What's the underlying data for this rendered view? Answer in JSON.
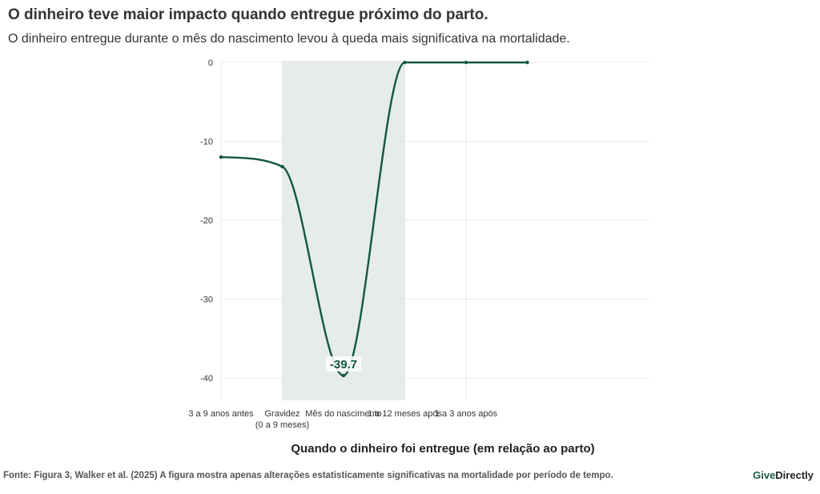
{
  "title": "O dinheiro teve maior impacto quando entregue próximo do parto.",
  "subtitle": "O dinheiro entregue durante o mês do nascimento levou à queda mais significativa na mortalidade.",
  "footer": "Fonte: Figura 3, Walker et al. (2025) A figura mostra apenas alterações estatisticamente significativas na mortalidade por período de tempo.",
  "brand": {
    "part1": "Give",
    "part2": "Directly"
  },
  "colors": {
    "line": "#12573f",
    "highlight": "#e6ece9",
    "grid": "#e8e8e8",
    "text": "#333333"
  },
  "chart_data": {
    "type": "line",
    "title": "",
    "xlabel": "Quando o dinheiro foi entregue (em relação ao parto)",
    "ylabel": "",
    "ylim": [
      -43,
      0
    ],
    "yticks": [
      0,
      -10,
      -20,
      -30,
      -40
    ],
    "categories": [
      [
        "3 a 9 anos antes"
      ],
      [
        "Gravidez",
        "(0 a 9 meses)"
      ],
      [
        "Mês do nascimento"
      ],
      [
        "1 a 12 meses após"
      ],
      [
        "1 a 3 anos após"
      ]
    ],
    "series": [
      {
        "name": "",
        "x": [
          0,
          1,
          2,
          3,
          4,
          5
        ],
        "values": [
          -12,
          -13.2,
          -39.7,
          0,
          0,
          0
        ]
      }
    ],
    "highlight": {
      "category": "Mês do nascimento"
    },
    "annotations": [
      {
        "category": "Mês do nascimento",
        "value": -39.7,
        "label": "-39.7"
      }
    ],
    "grid": true
  }
}
